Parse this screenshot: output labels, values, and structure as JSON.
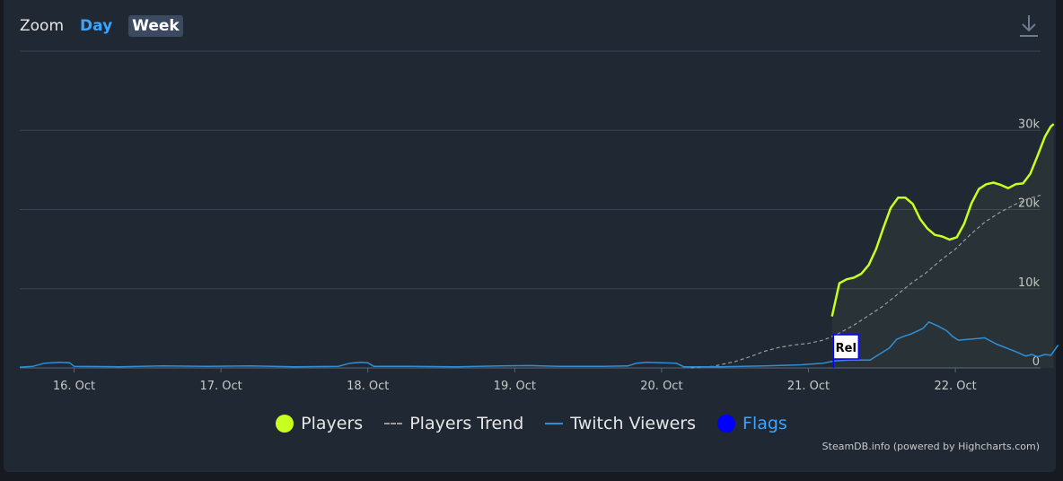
{
  "zoom": {
    "label": "Zoom",
    "day": "Day",
    "week": "Week"
  },
  "credits": "SteamDB.info (powered by Highcharts.com)",
  "chart_data": {
    "type": "line",
    "title": "",
    "xlabel": "",
    "ylabel": "",
    "x_ticks": [
      {
        "label": "16. Oct",
        "t": 16.0
      },
      {
        "label": "17. Oct",
        "t": 17.0
      },
      {
        "label": "18. Oct",
        "t": 18.0
      },
      {
        "label": "19. Oct",
        "t": 19.0
      },
      {
        "label": "20. Oct",
        "t": 20.0
      },
      {
        "label": "21. Oct",
        "t": 21.0
      },
      {
        "label": "22. Oct",
        "t": 22.0
      }
    ],
    "x_range": [
      15.63,
      22.58
    ],
    "y_ticks": [
      {
        "label": "0",
        "v": 0
      },
      {
        "label": "10k",
        "v": 10000
      },
      {
        "label": "20k",
        "v": 20000
      },
      {
        "label": "30k",
        "v": 30000
      }
    ],
    "ylim": [
      0,
      40000
    ],
    "grid": true,
    "legend_position": "bottom-center",
    "series": [
      {
        "name": "Players",
        "style": "solid",
        "color": "#c7ff1e",
        "points": [
          [
            21.16,
            6500
          ],
          [
            21.21,
            10700
          ],
          [
            21.26,
            11200
          ],
          [
            21.31,
            11400
          ],
          [
            21.36,
            11900
          ],
          [
            21.41,
            13000
          ],
          [
            21.46,
            15000
          ],
          [
            21.51,
            17700
          ],
          [
            21.56,
            20200
          ],
          [
            21.61,
            21500
          ],
          [
            21.66,
            21500
          ],
          [
            21.71,
            20700
          ],
          [
            21.76,
            18800
          ],
          [
            21.81,
            17600
          ],
          [
            21.86,
            16800
          ],
          [
            21.91,
            16600
          ],
          [
            21.96,
            16200
          ],
          [
            22.01,
            16500
          ],
          [
            22.06,
            18200
          ],
          [
            22.11,
            20800
          ],
          [
            22.16,
            22600
          ],
          [
            22.21,
            23200
          ],
          [
            22.26,
            23400
          ],
          [
            22.31,
            23100
          ],
          [
            22.36,
            22700
          ],
          [
            22.41,
            23200
          ],
          [
            22.46,
            23300
          ],
          [
            22.51,
            24500
          ],
          [
            22.56,
            26800
          ],
          [
            22.61,
            29200
          ],
          [
            22.65,
            30500
          ],
          [
            22.67,
            30800
          ]
        ]
      },
      {
        "name": "Players Trend",
        "style": "dashed",
        "color": "#9a9a9a",
        "points": [
          [
            20.2,
            0
          ],
          [
            20.35,
            200
          ],
          [
            20.5,
            800
          ],
          [
            20.6,
            1400
          ],
          [
            20.7,
            2100
          ],
          [
            20.8,
            2600
          ],
          [
            20.9,
            2900
          ],
          [
            21.0,
            3100
          ],
          [
            21.1,
            3500
          ],
          [
            21.2,
            4300
          ],
          [
            21.3,
            5300
          ],
          [
            21.4,
            6500
          ],
          [
            21.5,
            7700
          ],
          [
            21.6,
            9200
          ],
          [
            21.7,
            10700
          ],
          [
            21.8,
            12000
          ],
          [
            21.9,
            13600
          ],
          [
            22.0,
            15000
          ],
          [
            22.1,
            16800
          ],
          [
            22.2,
            18400
          ],
          [
            22.3,
            19600
          ],
          [
            22.4,
            20600
          ],
          [
            22.5,
            21400
          ],
          [
            22.58,
            21800
          ]
        ]
      },
      {
        "name": "Twitch Viewers",
        "style": "solid",
        "color": "#2f8fd6",
        "points": [
          [
            15.63,
            100
          ],
          [
            15.72,
            200
          ],
          [
            15.8,
            600
          ],
          [
            15.9,
            700
          ],
          [
            15.97,
            650
          ],
          [
            16.0,
            200
          ],
          [
            16.3,
            150
          ],
          [
            16.6,
            250
          ],
          [
            16.9,
            200
          ],
          [
            17.2,
            250
          ],
          [
            17.5,
            150
          ],
          [
            17.8,
            200
          ],
          [
            17.88,
            600
          ],
          [
            17.95,
            700
          ],
          [
            18.0,
            650
          ],
          [
            18.04,
            200
          ],
          [
            18.3,
            200
          ],
          [
            18.6,
            150
          ],
          [
            18.9,
            250
          ],
          [
            19.1,
            300
          ],
          [
            19.3,
            200
          ],
          [
            19.6,
            200
          ],
          [
            19.77,
            250
          ],
          [
            19.83,
            600
          ],
          [
            19.9,
            700
          ],
          [
            20.0,
            650
          ],
          [
            20.1,
            600
          ],
          [
            20.15,
            150
          ],
          [
            20.4,
            150
          ],
          [
            20.7,
            250
          ],
          [
            20.95,
            400
          ],
          [
            21.1,
            600
          ],
          [
            21.18,
            900
          ],
          [
            21.28,
            1000
          ],
          [
            21.35,
            1000
          ],
          [
            21.42,
            1000
          ],
          [
            21.48,
            1700
          ],
          [
            21.55,
            2500
          ],
          [
            21.6,
            3600
          ],
          [
            21.65,
            4000
          ],
          [
            21.7,
            4300
          ],
          [
            21.78,
            5000
          ],
          [
            21.82,
            5800
          ],
          [
            21.88,
            5300
          ],
          [
            21.94,
            4700
          ],
          [
            21.98,
            4000
          ],
          [
            22.02,
            3500
          ],
          [
            22.08,
            3600
          ],
          [
            22.15,
            3700
          ],
          [
            22.2,
            3800
          ],
          [
            22.28,
            3000
          ],
          [
            22.35,
            2500
          ],
          [
            22.42,
            2000
          ],
          [
            22.48,
            1500
          ],
          [
            22.52,
            1700
          ],
          [
            22.56,
            1400
          ],
          [
            22.61,
            1700
          ],
          [
            22.65,
            1600
          ],
          [
            22.7,
            2900
          ]
        ]
      }
    ],
    "flags": {
      "name": "Flags",
      "color": "#0000ff",
      "items": [
        {
          "t": 21.17,
          "label": "Rel"
        }
      ]
    }
  },
  "colors": {
    "background": "#202833",
    "grid": "#3a4452",
    "axis_text": "#c9c9c9",
    "players": "#c7ff1e",
    "trend": "#9a9a9a",
    "twitch": "#2f8fd6",
    "flags": "#0000ff",
    "flags_legend_text": "#3aa4ff",
    "accent_day": "#3aa4ff"
  },
  "icons": {
    "download": "download-icon"
  }
}
